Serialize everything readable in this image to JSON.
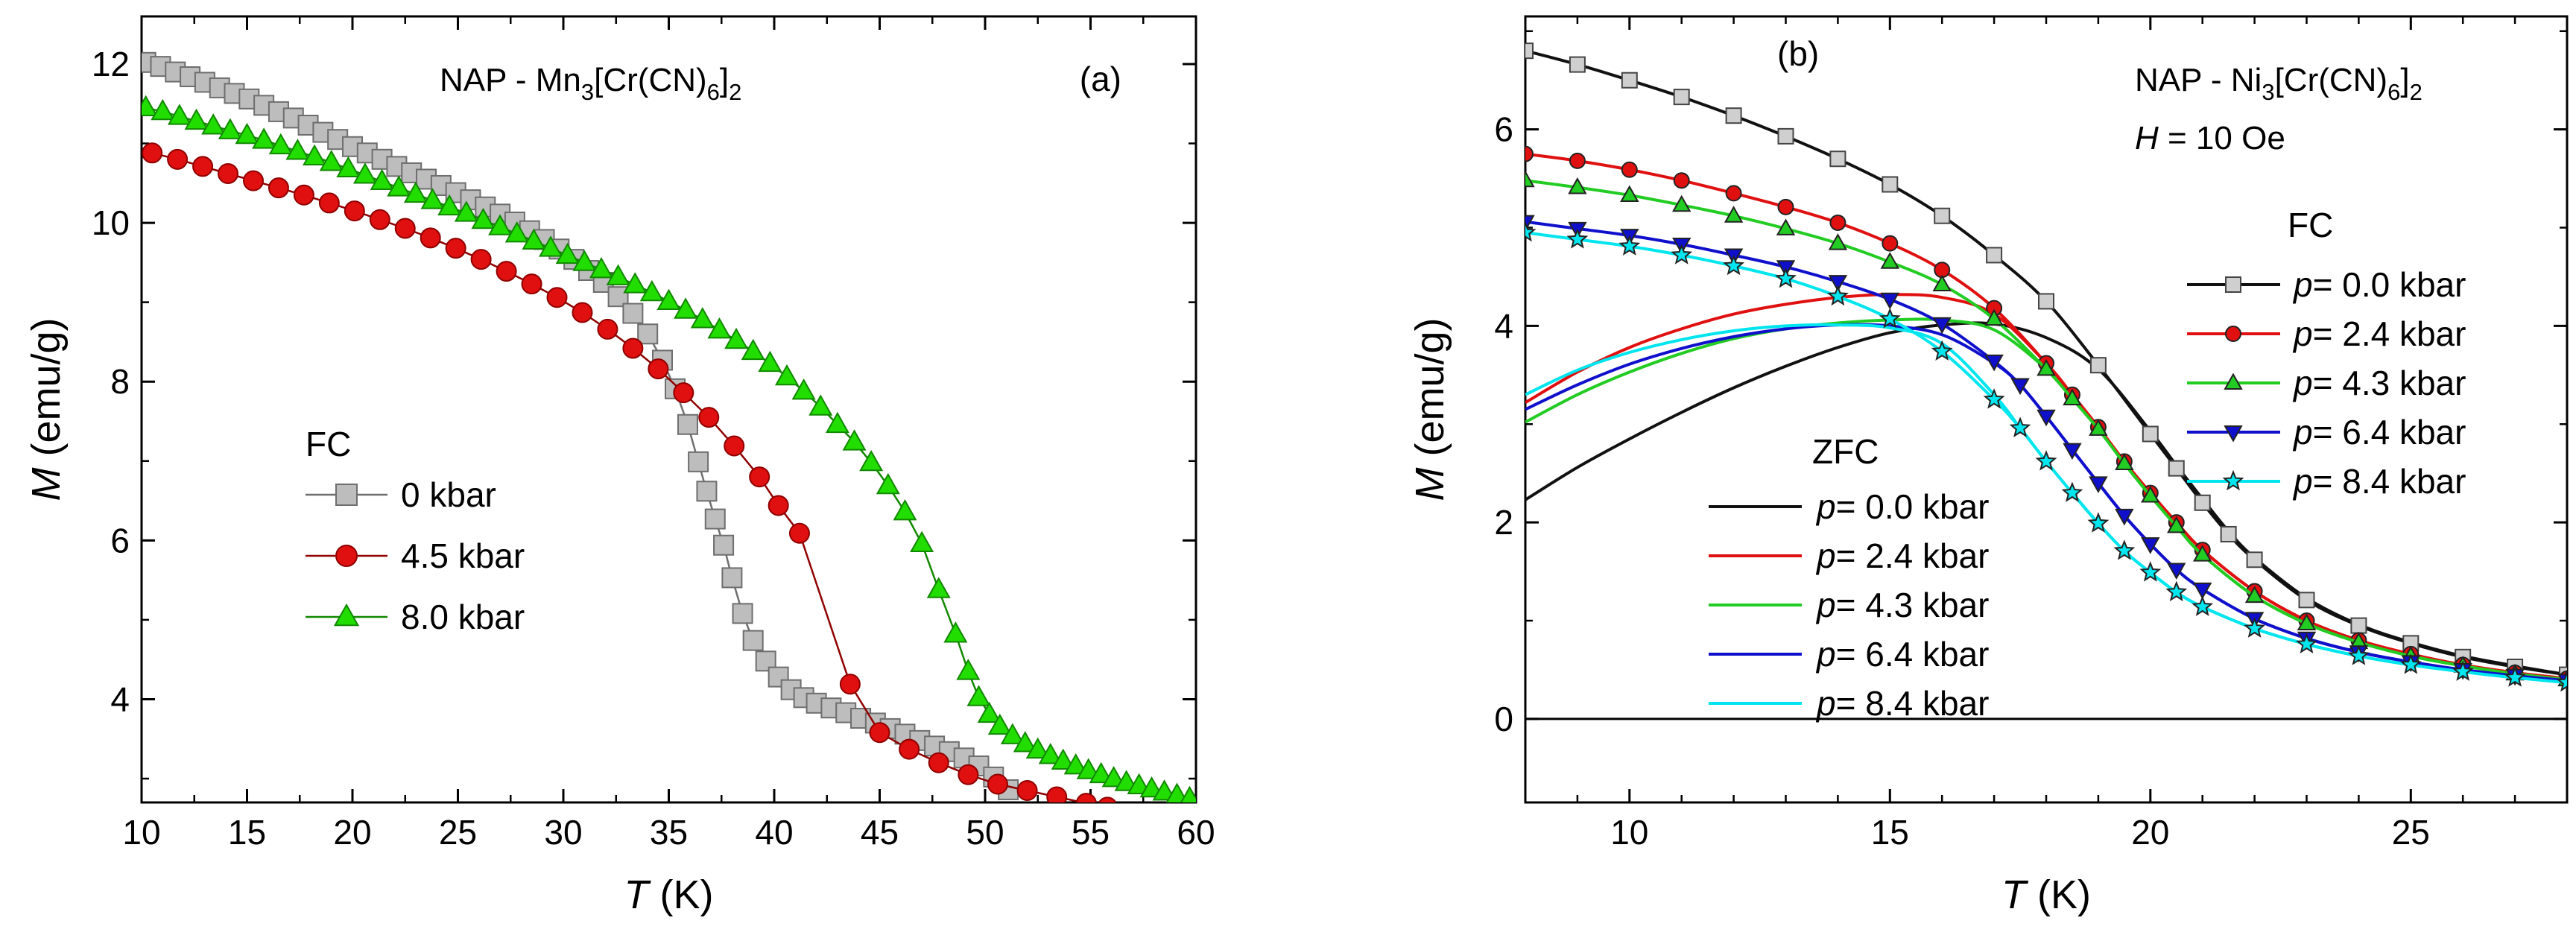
{
  "chart_data": [
    {
      "panel": "a",
      "type": "scatter",
      "panel_label": "(a)",
      "title": {
        "prefix": "NAP - Mn",
        "s1": "3",
        "mid": "[Cr(CN)",
        "s2": "6",
        "end": "]",
        "s3": "2"
      },
      "xlabel": {
        "var": "T",
        "unit": " (K)"
      },
      "ylabel": {
        "var": "M",
        "unit": " (emu/g)"
      },
      "xlim": [
        10,
        60
      ],
      "ylim": [
        2.7,
        12.6
      ],
      "xticks": [
        10,
        15,
        20,
        25,
        30,
        35,
        40,
        45,
        50,
        55,
        60
      ],
      "yticks": [
        4,
        6,
        8,
        10,
        12
      ],
      "legend_title": "FC",
      "series": [
        {
          "name": "0 kbar",
          "marker": "square",
          "fill": "#bdbdbd",
          "stroke": "#6e6e6e",
          "x": [
            10.2,
            10.9,
            11.6,
            12.3,
            13.0,
            13.7,
            14.4,
            15.1,
            15.8,
            16.5,
            17.2,
            17.9,
            18.6,
            19.3,
            20.0,
            20.7,
            21.4,
            22.1,
            22.8,
            23.5,
            24.2,
            24.9,
            25.6,
            26.3,
            27.0,
            27.7,
            28.4,
            29.1,
            29.8,
            30.5,
            31.2,
            31.9,
            32.6,
            33.3,
            34.0,
            34.7,
            35.3,
            35.9,
            36.4,
            36.8,
            37.2,
            37.6,
            38.0,
            38.5,
            39.0,
            39.6,
            40.2,
            40.8,
            41.4,
            42.0,
            42.7,
            43.4,
            44.1,
            44.8,
            45.5,
            46.2,
            46.9,
            47.6,
            48.3,
            49.0,
            49.7,
            50.4,
            51.1
          ],
          "y": [
            12.02,
            11.97,
            11.9,
            11.84,
            11.77,
            11.7,
            11.63,
            11.56,
            11.48,
            11.4,
            11.32,
            11.23,
            11.14,
            11.05,
            10.96,
            10.88,
            10.8,
            10.71,
            10.63,
            10.55,
            10.47,
            10.38,
            10.29,
            10.2,
            10.11,
            10.01,
            9.9,
            9.79,
            9.67,
            9.54,
            9.4,
            9.25,
            9.07,
            8.86,
            8.6,
            8.27,
            7.91,
            7.46,
            6.99,
            6.62,
            6.27,
            5.94,
            5.53,
            5.08,
            4.74,
            4.48,
            4.28,
            4.12,
            4.02,
            3.95,
            3.89,
            3.83,
            3.76,
            3.7,
            3.63,
            3.56,
            3.48,
            3.41,
            3.34,
            3.26,
            3.16,
            3.02,
            2.86
          ]
        },
        {
          "name": "4.5 kbar",
          "marker": "circle",
          "fill": "#e01010",
          "stroke": "#900000",
          "x": [
            10.5,
            11.7,
            12.9,
            14.1,
            15.3,
            16.5,
            17.7,
            18.9,
            20.1,
            21.3,
            22.5,
            23.7,
            24.9,
            26.1,
            27.3,
            28.5,
            29.7,
            30.9,
            32.1,
            33.3,
            34.5,
            35.7,
            36.9,
            38.1,
            39.3,
            40.2,
            41.2,
            43.6,
            45.0,
            46.4,
            47.8,
            49.2,
            50.6,
            52.0,
            53.4,
            54.8,
            55.8
          ],
          "y": [
            10.88,
            10.8,
            10.71,
            10.62,
            10.53,
            10.44,
            10.35,
            10.25,
            10.15,
            10.04,
            9.93,
            9.81,
            9.68,
            9.54,
            9.39,
            9.23,
            9.06,
            8.87,
            8.66,
            8.42,
            8.16,
            7.86,
            7.55,
            7.19,
            6.8,
            6.44,
            6.09,
            4.19,
            3.58,
            3.37,
            3.2,
            3.05,
            2.93,
            2.85,
            2.77,
            2.69,
            2.64
          ]
        },
        {
          "name": "8.0 kbar",
          "marker": "triangle",
          "fill": "#22dd00",
          "stroke": "#118800",
          "x": [
            10.2,
            11.0,
            11.8,
            12.6,
            13.4,
            14.2,
            15.0,
            15.8,
            16.6,
            17.4,
            18.2,
            19.0,
            19.8,
            20.6,
            21.4,
            22.2,
            23.0,
            23.8,
            24.6,
            25.4,
            26.2,
            27.0,
            27.8,
            28.6,
            29.4,
            30.2,
            31.0,
            31.8,
            32.6,
            33.4,
            34.2,
            35.0,
            35.8,
            36.6,
            37.4,
            38.2,
            39.0,
            39.8,
            40.6,
            41.4,
            42.2,
            43.0,
            43.8,
            44.6,
            45.4,
            46.2,
            47.0,
            47.8,
            48.6,
            49.2,
            49.7,
            50.2,
            50.7,
            51.3,
            51.9,
            52.5,
            53.1,
            53.7,
            54.3,
            54.9,
            55.5,
            56.1,
            56.7,
            57.3,
            57.9,
            58.5,
            59.1,
            59.7
          ],
          "y": [
            11.45,
            11.4,
            11.34,
            11.28,
            11.22,
            11.16,
            11.1,
            11.04,
            10.97,
            10.9,
            10.83,
            10.76,
            10.68,
            10.6,
            10.52,
            10.44,
            10.36,
            10.28,
            10.2,
            10.12,
            10.03,
            9.95,
            9.86,
            9.77,
            9.68,
            9.59,
            9.5,
            9.41,
            9.32,
            9.22,
            9.12,
            9.01,
            8.9,
            8.78,
            8.65,
            8.52,
            8.38,
            8.23,
            8.06,
            7.88,
            7.68,
            7.46,
            7.24,
            6.98,
            6.69,
            6.36,
            5.96,
            5.38,
            4.82,
            4.35,
            4.02,
            3.81,
            3.66,
            3.54,
            3.44,
            3.36,
            3.29,
            3.22,
            3.16,
            3.1,
            3.05,
            3.0,
            2.95,
            2.91,
            2.87,
            2.83,
            2.79,
            2.75
          ]
        }
      ]
    },
    {
      "panel": "b",
      "type": "line",
      "panel_label": "(b)",
      "title": {
        "prefix": "NAP - Ni",
        "s1": "3",
        "mid": "[Cr(CN)",
        "s2": "6",
        "end": "]",
        "s3": "2"
      },
      "field_label": {
        "var": "H",
        "text": " = 10 Oe"
      },
      "xlabel": {
        "var": "T",
        "unit": " (K)"
      },
      "ylabel": {
        "var": "M",
        "unit": " (emu/g)"
      },
      "xlim": [
        8,
        28
      ],
      "ylim": [
        -0.85,
        7.15
      ],
      "xticks": [
        10,
        15,
        20,
        25
      ],
      "yticks": [
        0,
        2,
        4,
        6
      ],
      "zero_line": true,
      "legend_fc_title": "FC",
      "legend_zfc_title": "ZFC",
      "fc_series": [
        {
          "name_var": "p",
          "name_text": "= 0.0 kbar",
          "color": "#111111",
          "marker": "square",
          "x": [
            8.0,
            9.0,
            10.0,
            11.0,
            12.0,
            13.0,
            14.0,
            15.0,
            16.0,
            17.0,
            18.0,
            19.0,
            20.0,
            20.5,
            21.0,
            21.5,
            22.0,
            23.0,
            24.0,
            25.0,
            26.0,
            27.0,
            28.0
          ],
          "y": [
            6.8,
            6.66,
            6.5,
            6.33,
            6.14,
            5.93,
            5.7,
            5.44,
            5.12,
            4.72,
            4.25,
            3.6,
            2.9,
            2.55,
            2.2,
            1.88,
            1.62,
            1.21,
            0.95,
            0.77,
            0.63,
            0.53,
            0.45
          ]
        },
        {
          "name_var": "p",
          "name_text": "= 2.4 kbar",
          "color": "#e01010",
          "marker": "circle",
          "x": [
            8.0,
            9.0,
            10.0,
            11.0,
            12.0,
            13.0,
            14.0,
            15.0,
            16.0,
            17.0,
            18.0,
            18.5,
            19.0,
            19.5,
            20.0,
            20.5,
            21.0,
            22.0,
            23.0,
            24.0,
            25.0,
            26.0,
            27.0,
            28.0
          ],
          "y": [
            5.75,
            5.68,
            5.59,
            5.48,
            5.35,
            5.21,
            5.05,
            4.84,
            4.57,
            4.18,
            3.62,
            3.3,
            2.97,
            2.62,
            2.3,
            2.0,
            1.72,
            1.3,
            1.0,
            0.8,
            0.66,
            0.55,
            0.47,
            0.41
          ]
        },
        {
          "name_var": "p",
          "name_text": "= 4.3 kbar",
          "color": "#22cc22",
          "marker": "triangle",
          "x": [
            8.0,
            9.0,
            10.0,
            11.0,
            12.0,
            13.0,
            14.0,
            15.0,
            16.0,
            17.0,
            18.0,
            18.5,
            19.0,
            19.5,
            20.0,
            20.5,
            21.0,
            22.0,
            23.0,
            24.0,
            25.0,
            26.0,
            27.0,
            28.0
          ],
          "y": [
            5.48,
            5.41,
            5.33,
            5.23,
            5.12,
            4.99,
            4.84,
            4.65,
            4.42,
            4.07,
            3.56,
            3.26,
            2.95,
            2.6,
            2.27,
            1.96,
            1.67,
            1.25,
            0.97,
            0.78,
            0.64,
            0.54,
            0.46,
            0.4
          ]
        },
        {
          "name_var": "p",
          "name_text": "= 6.4 kbar",
          "color": "#1010cc",
          "marker": "triangle-down",
          "x": [
            8.0,
            9.0,
            10.0,
            11.0,
            12.0,
            13.0,
            14.0,
            15.0,
            16.0,
            17.0,
            17.5,
            18.0,
            18.5,
            19.0,
            19.5,
            20.0,
            20.5,
            21.0,
            22.0,
            23.0,
            24.0,
            25.0,
            26.0,
            27.0,
            28.0
          ],
          "y": [
            5.06,
            4.99,
            4.92,
            4.83,
            4.72,
            4.6,
            4.45,
            4.27,
            4.02,
            3.64,
            3.4,
            3.08,
            2.74,
            2.4,
            2.07,
            1.78,
            1.52,
            1.32,
            1.02,
            0.82,
            0.68,
            0.58,
            0.5,
            0.44,
            0.39
          ]
        },
        {
          "name_var": "p",
          "name_text": "= 8.4 kbar",
          "color": "#00e5ee",
          "marker": "star",
          "x": [
            8.0,
            9.0,
            10.0,
            11.0,
            12.0,
            13.0,
            14.0,
            15.0,
            16.0,
            17.0,
            17.5,
            18.0,
            18.5,
            19.0,
            19.5,
            20.0,
            20.5,
            21.0,
            22.0,
            23.0,
            24.0,
            25.0,
            26.0,
            27.0,
            28.0
          ],
          "y": [
            4.95,
            4.88,
            4.81,
            4.72,
            4.61,
            4.48,
            4.3,
            4.07,
            3.74,
            3.25,
            2.96,
            2.62,
            2.3,
            1.99,
            1.71,
            1.49,
            1.29,
            1.14,
            0.92,
            0.76,
            0.64,
            0.55,
            0.48,
            0.42,
            0.37
          ]
        }
      ],
      "zfc_series": [
        {
          "name_var": "p",
          "name_text": "= 0.0 kbar",
          "color": "#111111",
          "x": [
            8.0,
            9.0,
            10.0,
            11.0,
            12.0,
            13.0,
            14.0,
            15.0,
            16.0,
            17.0,
            18.0,
            19.0,
            20.0,
            20.5,
            21.0,
            21.5,
            22.0,
            23.0,
            24.0,
            25.0,
            26.0,
            27.0,
            28.0
          ],
          "y": [
            2.23,
            2.56,
            2.85,
            3.12,
            3.37,
            3.59,
            3.78,
            3.93,
            4.01,
            4.02,
            3.88,
            3.56,
            2.93,
            2.58,
            2.24,
            1.91,
            1.64,
            1.23,
            0.96,
            0.78,
            0.64,
            0.54,
            0.45
          ]
        },
        {
          "name_var": "p",
          "name_text": "= 2.4 kbar",
          "color": "#e01010",
          "x": [
            8.0,
            9.0,
            10.0,
            11.0,
            12.0,
            13.0,
            14.0,
            15.0,
            16.0,
            17.0,
            18.0,
            18.5,
            19.0,
            19.5,
            20.0,
            20.5,
            21.0,
            22.0,
            23.0,
            24.0,
            25.0,
            26.0,
            27.0,
            28.0
          ],
          "y": [
            3.22,
            3.53,
            3.78,
            3.97,
            4.12,
            4.22,
            4.29,
            4.32,
            4.29,
            4.12,
            3.62,
            3.3,
            2.97,
            2.62,
            2.3,
            2.0,
            1.72,
            1.3,
            1.0,
            0.8,
            0.66,
            0.55,
            0.47,
            0.41
          ]
        },
        {
          "name_var": "p",
          "name_text": "= 4.3 kbar",
          "color": "#22cc22",
          "x": [
            8.0,
            9.0,
            10.0,
            11.0,
            12.0,
            13.0,
            14.0,
            15.0,
            16.0,
            17.0,
            18.0,
            18.5,
            19.0,
            19.5,
            20.0,
            20.5,
            21.0,
            22.0,
            23.0,
            24.0,
            25.0,
            26.0,
            27.0,
            28.0
          ],
          "y": [
            3.02,
            3.3,
            3.53,
            3.72,
            3.87,
            3.97,
            4.03,
            4.06,
            4.06,
            3.96,
            3.56,
            3.26,
            2.95,
            2.6,
            2.27,
            1.96,
            1.67,
            1.25,
            0.97,
            0.78,
            0.64,
            0.54,
            0.46,
            0.4
          ]
        },
        {
          "name_var": "p",
          "name_text": "= 6.4 kbar",
          "color": "#1010cc",
          "x": [
            8.0,
            9.0,
            10.0,
            11.0,
            12.0,
            13.0,
            14.0,
            15.0,
            16.0,
            17.0,
            17.5,
            18.0,
            18.5,
            19.0,
            19.5,
            20.0,
            20.5,
            21.0,
            22.0,
            23.0,
            24.0,
            25.0,
            26.0,
            27.0,
            28.0
          ],
          "y": [
            3.15,
            3.4,
            3.61,
            3.77,
            3.89,
            3.97,
            4.01,
            4.0,
            3.91,
            3.62,
            3.4,
            3.08,
            2.74,
            2.4,
            2.07,
            1.78,
            1.52,
            1.32,
            1.02,
            0.82,
            0.68,
            0.58,
            0.5,
            0.44,
            0.39
          ]
        },
        {
          "name_var": "p",
          "name_text": "= 8.4 kbar",
          "color": "#00e5ee",
          "x": [
            8.0,
            9.0,
            10.0,
            11.0,
            12.0,
            13.0,
            14.0,
            15.0,
            16.0,
            17.0,
            17.5,
            18.0,
            18.5,
            19.0,
            19.5,
            20.0,
            20.5,
            21.0,
            22.0,
            23.0,
            24.0,
            25.0,
            26.0,
            27.0,
            28.0
          ],
          "y": [
            3.3,
            3.55,
            3.73,
            3.86,
            3.95,
            4.0,
            4.01,
            3.98,
            3.82,
            3.3,
            2.96,
            2.62,
            2.3,
            1.99,
            1.71,
            1.49,
            1.29,
            1.14,
            0.92,
            0.76,
            0.64,
            0.55,
            0.48,
            0.42,
            0.37
          ]
        }
      ]
    }
  ]
}
